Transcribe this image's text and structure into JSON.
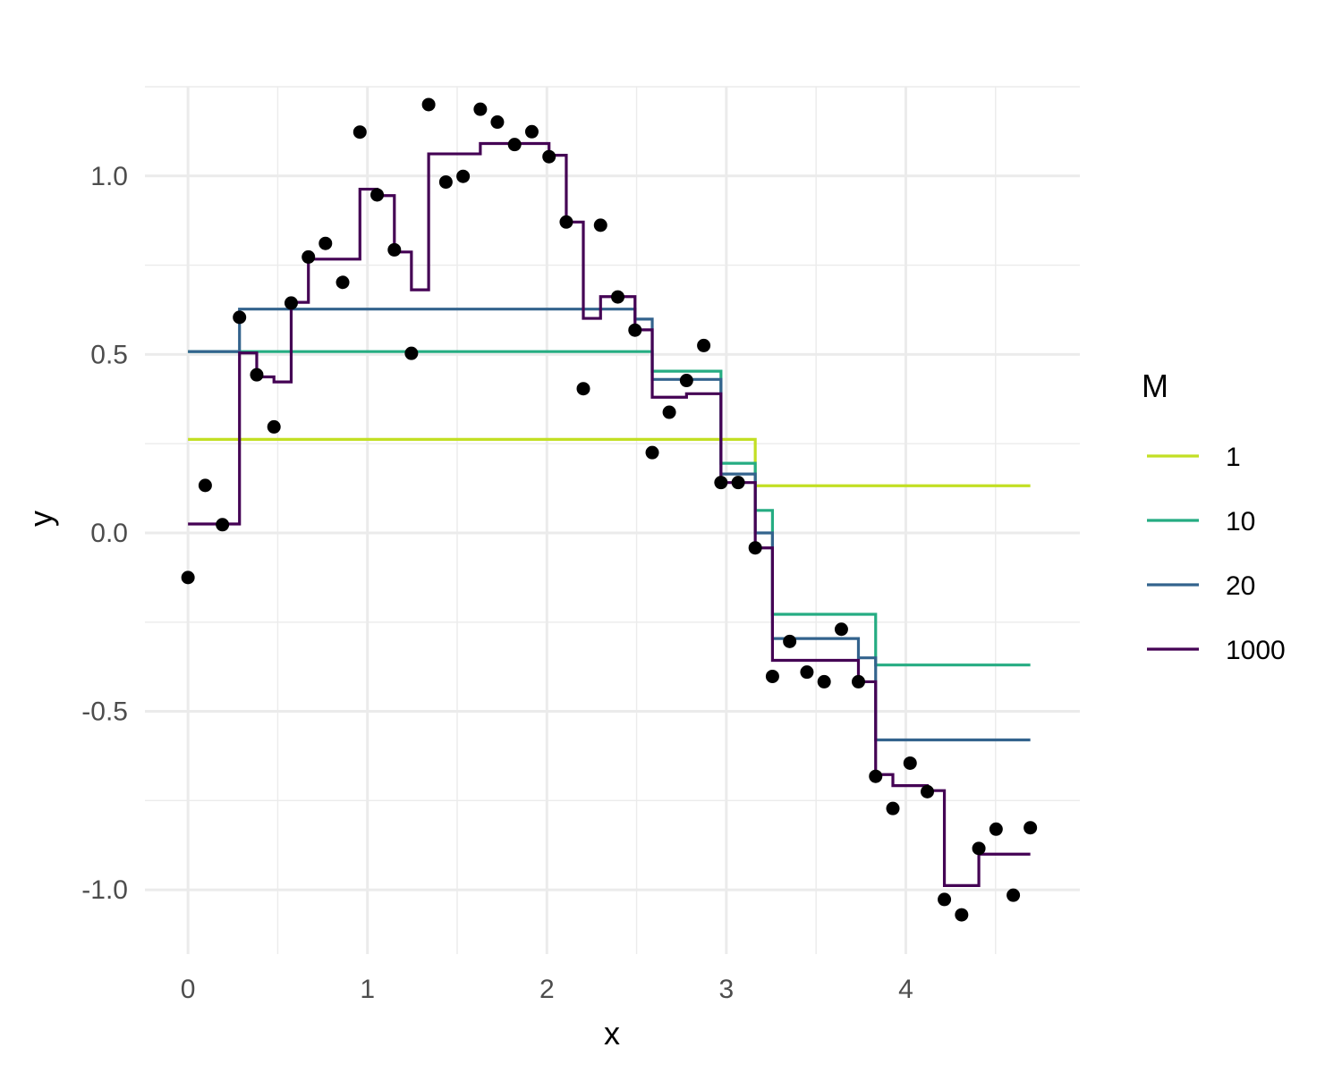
{
  "chart_data": {
    "type": "line",
    "xlabel": "x",
    "ylabel": "y",
    "xlim": [
      -0.24,
      4.97
    ],
    "ylim": [
      -1.18,
      1.25
    ],
    "x_ticks": [
      0,
      1,
      2,
      3,
      4
    ],
    "x_tick_labels": [
      "0",
      "1",
      "2",
      "3",
      "4"
    ],
    "y_ticks": [
      -1.0,
      -0.5,
      0.0,
      0.5,
      1.0
    ],
    "y_tick_labels": [
      "-1.0",
      "-0.5",
      "0.0",
      "0.5",
      "1.0"
    ],
    "grid": true,
    "legend": {
      "title": "M",
      "placement": "right"
    },
    "points": {
      "color": "#000000",
      "x": [
        0.0,
        0.096,
        0.192,
        0.287,
        0.383,
        0.479,
        0.575,
        0.671,
        0.766,
        0.862,
        0.958,
        1.054,
        1.15,
        1.245,
        1.341,
        1.437,
        1.533,
        1.629,
        1.724,
        1.82,
        1.916,
        2.012,
        2.108,
        2.203,
        2.299,
        2.395,
        2.491,
        2.587,
        2.682,
        2.778,
        2.874,
        2.97,
        3.066,
        3.161,
        3.257,
        3.353,
        3.449,
        3.545,
        3.641,
        3.736,
        3.832,
        3.928,
        4.024,
        4.12,
        4.215,
        4.311,
        4.407,
        4.503,
        4.599,
        4.694
      ],
      "y": [
        -0.125,
        0.133,
        0.023,
        0.604,
        0.443,
        0.297,
        0.644,
        0.773,
        0.811,
        0.702,
        1.123,
        0.947,
        0.793,
        0.503,
        1.2,
        0.983,
        0.999,
        1.187,
        1.151,
        1.088,
        1.124,
        1.054,
        0.871,
        0.404,
        0.862,
        0.661,
        0.568,
        0.225,
        0.338,
        0.427,
        0.525,
        0.141,
        0.141,
        -0.042,
        -0.402,
        -0.304,
        -0.39,
        -0.417,
        -0.27,
        -0.417,
        -0.682,
        -0.772,
        -0.645,
        -0.725,
        -1.027,
        -1.07,
        -0.884,
        -0.83,
        -1.015,
        -0.826
      ]
    },
    "series": [
      {
        "name": "1",
        "color": "#c2df23",
        "steps": [
          [
            0.0,
            0.262
          ],
          [
            3.161,
            0.132
          ],
          [
            4.694,
            0.132
          ]
        ]
      },
      {
        "name": "10",
        "color": "#25ac82",
        "steps": [
          [
            0.0,
            0.508
          ],
          [
            2.587,
            0.453
          ],
          [
            2.97,
            0.195
          ],
          [
            3.161,
            0.063
          ],
          [
            3.257,
            -0.228
          ],
          [
            3.832,
            -0.37
          ],
          [
            4.694,
            -0.37
          ]
        ]
      },
      {
        "name": "20",
        "color": "#33638d",
        "steps": [
          [
            0.0,
            0.508
          ],
          [
            0.287,
            0.627
          ],
          [
            2.491,
            0.599
          ],
          [
            2.587,
            0.43
          ],
          [
            2.97,
            0.165
          ],
          [
            3.161,
            0.0
          ],
          [
            3.257,
            -0.296
          ],
          [
            3.736,
            -0.35
          ],
          [
            3.832,
            -0.58
          ],
          [
            4.694,
            -0.58
          ]
        ]
      },
      {
        "name": "1000",
        "color": "#440154",
        "steps": [
          [
            0.0,
            0.025
          ],
          [
            0.287,
            0.504
          ],
          [
            0.383,
            0.437
          ],
          [
            0.479,
            0.423
          ],
          [
            0.575,
            0.646
          ],
          [
            0.671,
            0.767
          ],
          [
            0.958,
            0.963
          ],
          [
            1.054,
            0.945
          ],
          [
            1.15,
            0.787
          ],
          [
            1.245,
            0.681
          ],
          [
            1.341,
            1.062
          ],
          [
            1.629,
            1.091
          ],
          [
            2.012,
            1.058
          ],
          [
            2.108,
            0.871
          ],
          [
            2.203,
            0.601
          ],
          [
            2.299,
            0.662
          ],
          [
            2.395,
            0.662
          ],
          [
            2.491,
            0.569
          ],
          [
            2.587,
            0.38
          ],
          [
            2.778,
            0.39
          ],
          [
            2.97,
            0.141
          ],
          [
            3.161,
            -0.042
          ],
          [
            3.257,
            -0.357
          ],
          [
            3.449,
            -0.357
          ],
          [
            3.736,
            -0.417
          ],
          [
            3.832,
            -0.677
          ],
          [
            3.928,
            -0.708
          ],
          [
            4.12,
            -0.722
          ],
          [
            4.215,
            -0.988
          ],
          [
            4.407,
            -0.9
          ],
          [
            4.694,
            -0.9
          ]
        ]
      }
    ]
  }
}
